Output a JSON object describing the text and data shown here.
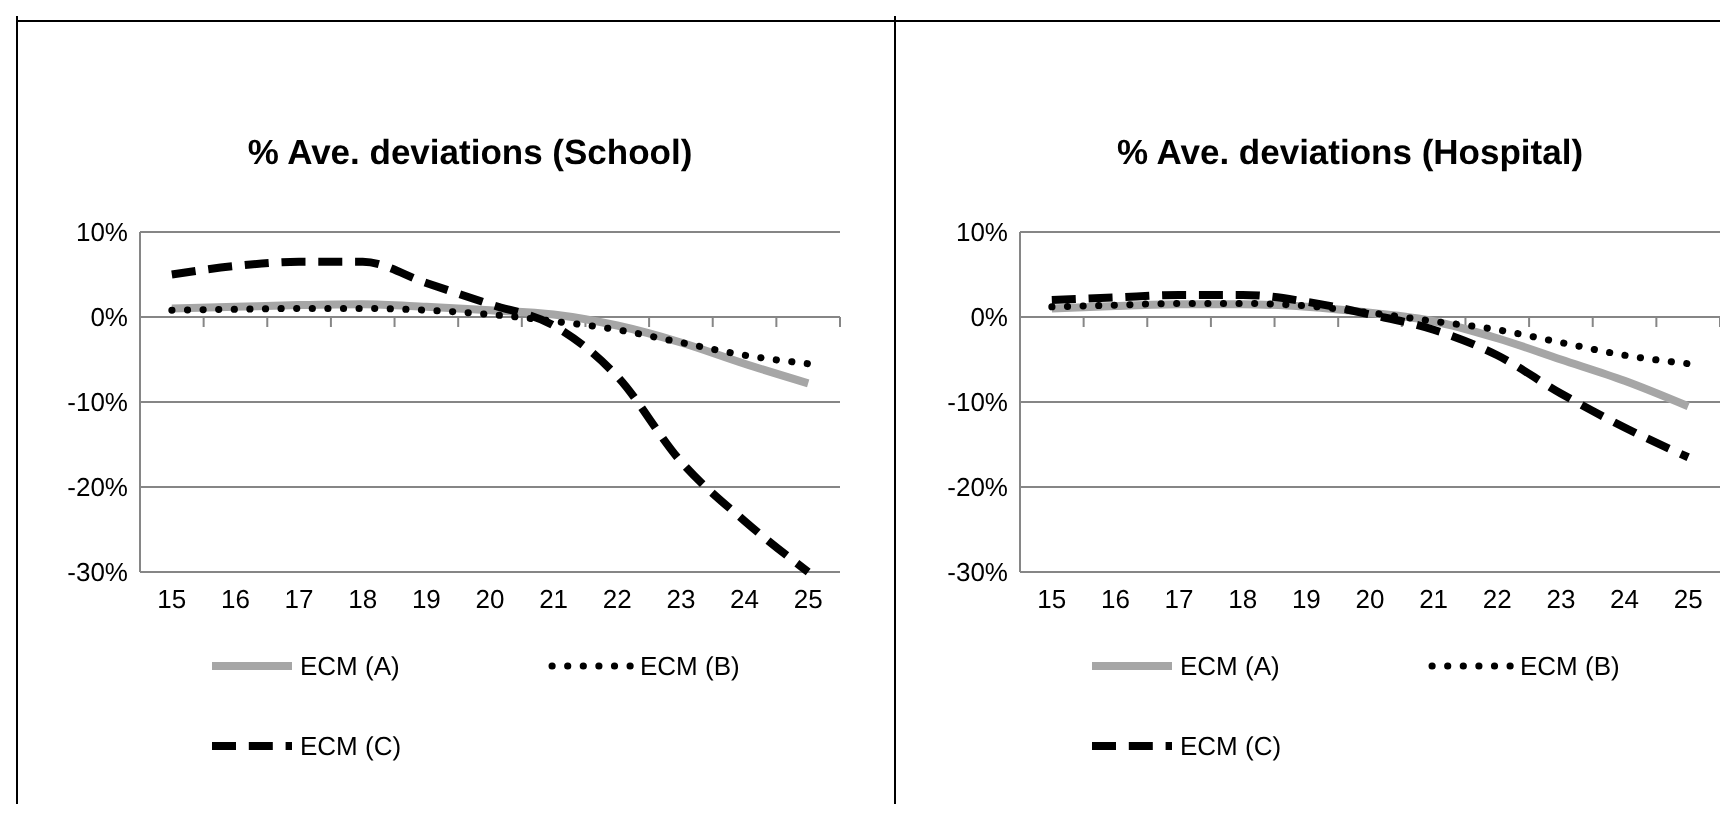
{
  "chart_data": [
    {
      "type": "line",
      "title": "% Ave. deviations (School)",
      "categories": [
        "15",
        "16",
        "17",
        "18",
        "19",
        "20",
        "21",
        "22",
        "23",
        "24",
        "25"
      ],
      "ylim": [
        -30,
        10
      ],
      "yticks": [
        {
          "value": -30,
          "label": "-30%"
        },
        {
          "value": -20,
          "label": "-20%"
        },
        {
          "value": -10,
          "label": "-10%"
        },
        {
          "value": 0,
          "label": "0%"
        },
        {
          "value": 10,
          "label": "10%"
        }
      ],
      "grid": "y",
      "legend": "bottom",
      "marker": "none",
      "series": [
        {
          "name": "ECM (A)",
          "color": "#a6a6a6",
          "line_style": "solid",
          "values": [
            1,
            1.2,
            1.4,
            1.5,
            1.2,
            0.8,
            0.3,
            -1,
            -3,
            -5.5,
            -7.8
          ]
        },
        {
          "name": "ECM (B)",
          "color": "#000000",
          "line_style": "dotted",
          "values": [
            0.8,
            0.9,
            1,
            1,
            0.8,
            0.3,
            -0.5,
            -1.5,
            -3,
            -4.5,
            -5.5
          ]
        },
        {
          "name": "ECM (C)",
          "color": "#000000",
          "line_style": "dashed",
          "values": [
            5,
            6,
            6.5,
            6.5,
            4,
            1.5,
            -1,
            -7,
            -17,
            -24,
            -30
          ]
        }
      ]
    },
    {
      "type": "line",
      "title": "% Ave. deviations (Hospital)",
      "categories": [
        "15",
        "16",
        "17",
        "18",
        "19",
        "20",
        "21",
        "22",
        "23",
        "24",
        "25"
      ],
      "ylim": [
        -30,
        10
      ],
      "yticks": [
        {
          "value": -30,
          "label": "-30%"
        },
        {
          "value": -20,
          "label": "-20%"
        },
        {
          "value": -10,
          "label": "-10%"
        },
        {
          "value": 0,
          "label": "0%"
        },
        {
          "value": 10,
          "label": "10%"
        }
      ],
      "grid": "y",
      "legend": "bottom",
      "marker": "none",
      "series": [
        {
          "name": "ECM (A)",
          "color": "#a6a6a6",
          "line_style": "solid",
          "values": [
            1,
            1.3,
            1.5,
            1.5,
            1.2,
            0.5,
            -0.5,
            -2.5,
            -5,
            -7.5,
            -10.5
          ]
        },
        {
          "name": "ECM (B)",
          "color": "#000000",
          "line_style": "dotted",
          "values": [
            1.2,
            1.4,
            1.6,
            1.6,
            1.3,
            0.5,
            -0.5,
            -1.5,
            -3,
            -4.5,
            -5.5
          ]
        },
        {
          "name": "ECM (C)",
          "color": "#000000",
          "line_style": "dashed",
          "values": [
            2,
            2.3,
            2.6,
            2.6,
            1.8,
            0.3,
            -1.5,
            -4.5,
            -9,
            -13,
            -16.5
          ]
        }
      ]
    }
  ]
}
